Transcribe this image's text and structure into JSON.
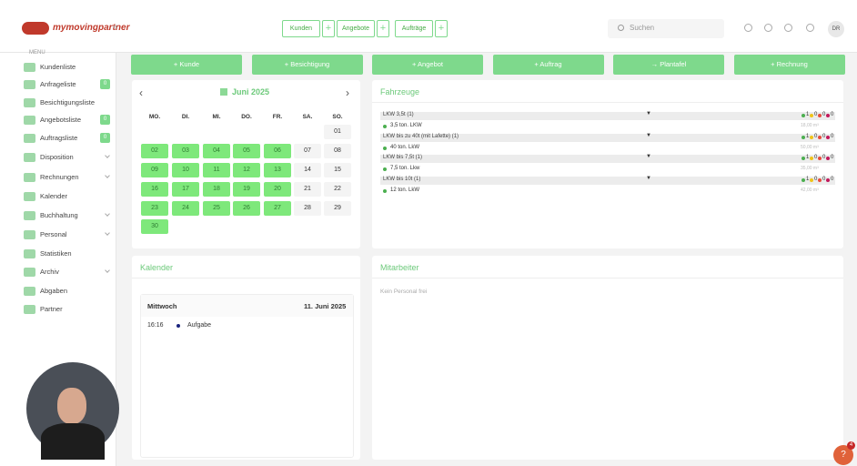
{
  "header": {
    "logo": "mymovingpartner",
    "collapse": "«",
    "quick": [
      {
        "label": "Kunden",
        "plus": "+"
      },
      {
        "label": "Angebote",
        "plus": "+"
      },
      {
        "label": "Aufträge",
        "plus": "+"
      }
    ],
    "search": "Suchen",
    "user": "DR"
  },
  "sidebar": {
    "title": "MENU",
    "items": [
      {
        "label": "Kundenliste"
      },
      {
        "label": "Anfrageliste",
        "badge": "0"
      },
      {
        "label": "Besichtigungsliste"
      },
      {
        "label": "Angebotsliste",
        "badge": "0"
      },
      {
        "label": "Auftragsliste",
        "badge": "0"
      },
      {
        "label": "Disposition",
        "submenu": true
      },
      {
        "label": "Rechnungen",
        "submenu": true
      },
      {
        "label": "Kalender"
      },
      {
        "label": "Buchhaltung",
        "submenu": true
      },
      {
        "label": "Personal",
        "submenu": true
      },
      {
        "label": "Statistiken"
      },
      {
        "label": "Archiv",
        "submenu": true
      },
      {
        "label": "Abgaben"
      },
      {
        "label": "Partner"
      }
    ]
  },
  "actions": [
    "+ Kunde",
    "+ Besichtigung",
    "+ Angebot",
    "+ Auftrag",
    "→ Plantafel",
    "+ Rechnung"
  ],
  "calendar": {
    "prev": "‹",
    "next": "›",
    "month": "Juni 2025",
    "weekdays": [
      "MO.",
      "DI.",
      "MI.",
      "DO.",
      "FR.",
      "SA.",
      "SO."
    ],
    "weeks": [
      [
        null,
        null,
        null,
        null,
        null,
        null,
        {
          "label": "01",
          "highlight": false
        }
      ],
      [
        {
          "label": "02",
          "highlight": true
        },
        {
          "label": "03",
          "highlight": true
        },
        {
          "label": "04",
          "highlight": true
        },
        {
          "label": "05",
          "highlight": true
        },
        {
          "label": "06",
          "highlight": true
        },
        {
          "label": "07",
          "highlight": false
        },
        {
          "label": "08",
          "highlight": false
        }
      ],
      [
        {
          "label": "09",
          "highlight": true
        },
        {
          "label": "10",
          "highlight": true
        },
        {
          "label": "11",
          "highlight": true
        },
        {
          "label": "12",
          "highlight": true
        },
        {
          "label": "13",
          "highlight": true
        },
        {
          "label": "14",
          "highlight": false
        },
        {
          "label": "15",
          "highlight": false
        }
      ],
      [
        {
          "label": "16",
          "highlight": true
        },
        {
          "label": "17",
          "highlight": true
        },
        {
          "label": "18",
          "highlight": true
        },
        {
          "label": "19",
          "highlight": true
        },
        {
          "label": "20",
          "highlight": true
        },
        {
          "label": "21",
          "highlight": false
        },
        {
          "label": "22",
          "highlight": false
        }
      ],
      [
        {
          "label": "23",
          "highlight": true
        },
        {
          "label": "24",
          "highlight": true
        },
        {
          "label": "25",
          "highlight": true
        },
        {
          "label": "26",
          "highlight": true
        },
        {
          "label": "27",
          "highlight": true
        },
        {
          "label": "28",
          "highlight": false
        },
        {
          "label": "29",
          "highlight": false
        }
      ],
      [
        {
          "label": "30",
          "highlight": true
        }
      ]
    ]
  },
  "vehicles": {
    "title": "Fahrzeuge",
    "groups": [
      {
        "name": "LKW 3,5t (1)",
        "toggle": "▼",
        "status": [
          1,
          0,
          0,
          0
        ],
        "vehicles": [
          {
            "name": "3,5 ton. LKW",
            "volume": "18,00 m³"
          }
        ]
      },
      {
        "name": "LKW bis zu 40t (mit Lafette) (1)",
        "toggle": "▼",
        "status": [
          1,
          0,
          0,
          0
        ],
        "vehicles": [
          {
            "name": "40 ton. LkW",
            "volume": "50,00 m³"
          }
        ]
      },
      {
        "name": "LKW bis 7,5t (1)",
        "toggle": "▼",
        "status": [
          1,
          0,
          0,
          0
        ],
        "vehicles": [
          {
            "name": "7,5 ton. Lkw",
            "volume": "35,00 m³"
          }
        ]
      },
      {
        "name": "LKW bis 10t (1)",
        "toggle": "▼",
        "status": [
          1,
          0,
          0,
          0
        ],
        "vehicles": [
          {
            "name": "12 ton. LkW",
            "volume": "42,00 m³"
          }
        ]
      }
    ]
  },
  "agenda": {
    "title": "Kalender",
    "weekday": "Mittwoch",
    "date": "11. Juni 2025",
    "events": [
      {
        "time": "16:16",
        "label": "Aufgabe"
      }
    ]
  },
  "staff": {
    "title": "Mitarbeiter",
    "empty": "Kein Personal frei"
  },
  "help": {
    "label": "?",
    "badge": "4"
  }
}
